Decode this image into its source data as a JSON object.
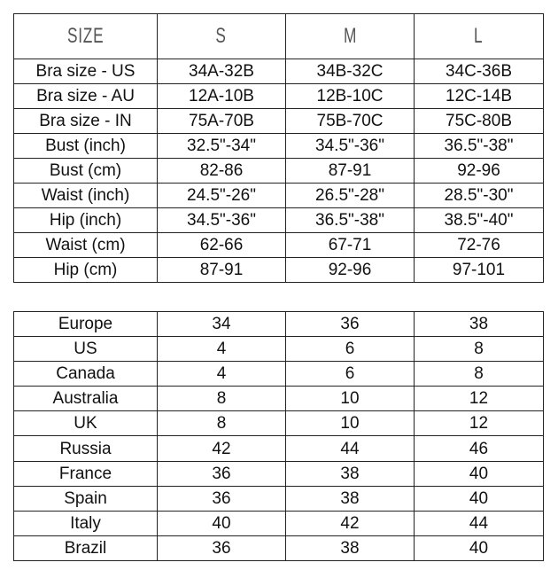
{
  "measurements": {
    "headers": [
      "SIZE",
      "S",
      "M",
      "L"
    ],
    "rows": [
      [
        "Bra size - US",
        "34A-32B",
        "34B-32C",
        "34C-36B"
      ],
      [
        "Bra size - AU",
        "12A-10B",
        "12B-10C",
        "12C-14B"
      ],
      [
        "Bra size - IN",
        "75A-70B",
        "75B-70C",
        "75C-80B"
      ],
      [
        "Bust (inch)",
        "32.5\"-34\"",
        "34.5\"-36\"",
        "36.5\"-38\""
      ],
      [
        "Bust (cm)",
        "82-86",
        "87-91",
        "92-96"
      ],
      [
        "Waist (inch)",
        "24.5\"-26\"",
        "26.5\"-28\"",
        "28.5\"-30\""
      ],
      [
        "Hip (inch)",
        "34.5\"-36\"",
        "36.5\"-38\"",
        "38.5\"-40\""
      ],
      [
        "Waist (cm)",
        "62-66",
        "67-71",
        "72-76"
      ],
      [
        "Hip (cm)",
        "87-91",
        "92-96",
        "97-101"
      ]
    ]
  },
  "conversion": {
    "rows": [
      [
        "Europe",
        "34",
        "36",
        "38"
      ],
      [
        "US",
        "4",
        "6",
        "8"
      ],
      [
        "Canada",
        "4",
        "6",
        "8"
      ],
      [
        "Australia",
        "8",
        "10",
        "12"
      ],
      [
        "UK",
        "8",
        "10",
        "12"
      ],
      [
        "Russia",
        "42",
        "44",
        "46"
      ],
      [
        "France",
        "36",
        "38",
        "40"
      ],
      [
        "Spain",
        "36",
        "38",
        "40"
      ],
      [
        "Italy",
        "40",
        "42",
        "44"
      ],
      [
        "Brazil",
        "36",
        "38",
        "40"
      ]
    ]
  }
}
